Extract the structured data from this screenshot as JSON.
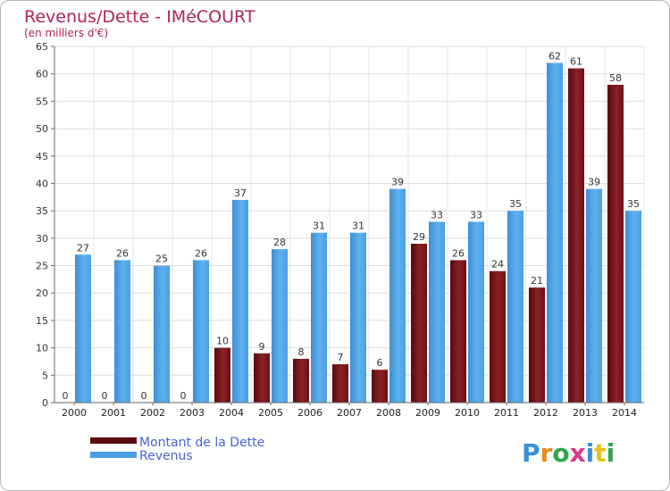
{
  "chart_data": {
    "type": "bar",
    "title": "Revenus/Dette - IMéCOURT",
    "subtitle": "(en milliers d'€)",
    "categories": [
      "2000",
      "2001",
      "2002",
      "2003",
      "2004",
      "2005",
      "2006",
      "2007",
      "2008",
      "2009",
      "2010",
      "2011",
      "2012",
      "2013",
      "2014"
    ],
    "series": [
      {
        "name": "Montant de la Dette",
        "color": "#7a1418",
        "values": [
          0,
          0,
          0,
          0,
          10,
          9,
          8,
          7,
          6,
          29,
          26,
          24,
          21,
          61,
          58
        ]
      },
      {
        "name": "Revenus",
        "color": "#4a9fe4",
        "values": [
          27,
          26,
          25,
          26,
          37,
          28,
          31,
          31,
          39,
          33,
          33,
          35,
          62,
          39,
          35
        ]
      }
    ],
    "ylim": [
      0,
      65
    ],
    "yticks": [
      0,
      5,
      10,
      15,
      20,
      25,
      30,
      35,
      40,
      45,
      50,
      55,
      60,
      65
    ],
    "grid": true,
    "legend_position": "bottom-left"
  },
  "legend": {
    "debt_label": "Montant de la Dette",
    "revenue_label": "Revenus"
  },
  "logo": {
    "text": "Proxiti",
    "colors": [
      "#3a8fd8",
      "#e88a1a",
      "#2ea84a",
      "#d63a8a",
      "#3a8fd8",
      "#e8c21a",
      "#2ea84a"
    ]
  }
}
